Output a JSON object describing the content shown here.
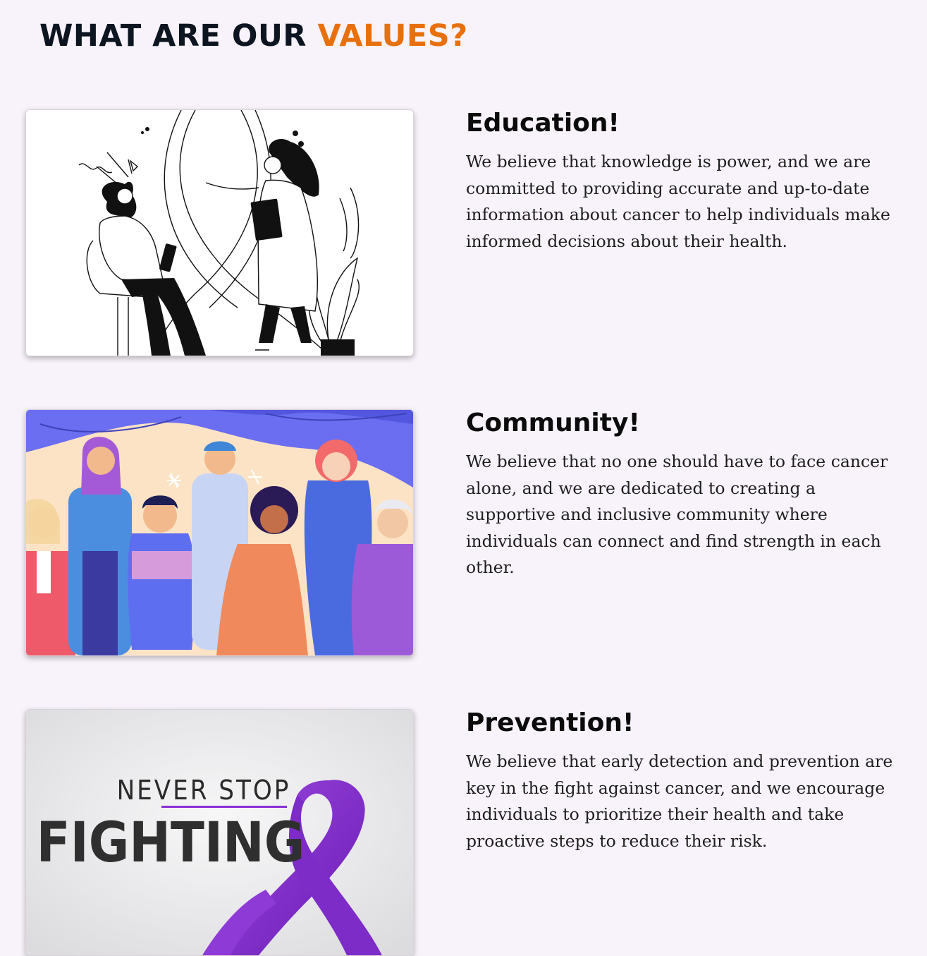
{
  "heading": {
    "prefix": "WHAT ARE OUR",
    "accent": "VALUES?",
    "accent_color": "#e8700c"
  },
  "values": [
    {
      "title": "Education!",
      "text": "We believe that knowledge is power, and we are committed to providing accurate and up-to-date information about cancer to help individuals make informed decisions about their health.",
      "image": "doctor-patient-consultation-illustration"
    },
    {
      "title": "Community!",
      "text": "We believe that no one should have to face cancer alone, and we are dedicated to creating a supportive and inclusive community where individuals can connect and find strength in each other.",
      "image": "diverse-group-holding-hands-illustration"
    },
    {
      "title": "Prevention!",
      "text": "We believe that early detection and prevention are key in the fight against cancer, and we encourage individuals to prioritize their health and take proactive steps to reduce their risk.",
      "image": "never-stop-fighting-purple-ribbon",
      "image_text": {
        "line1": "NEVER STOP",
        "line2": "FIGHTING"
      }
    }
  ],
  "colors": {
    "background": "#f8f3fa",
    "ribbon": "#8a2fd4"
  }
}
